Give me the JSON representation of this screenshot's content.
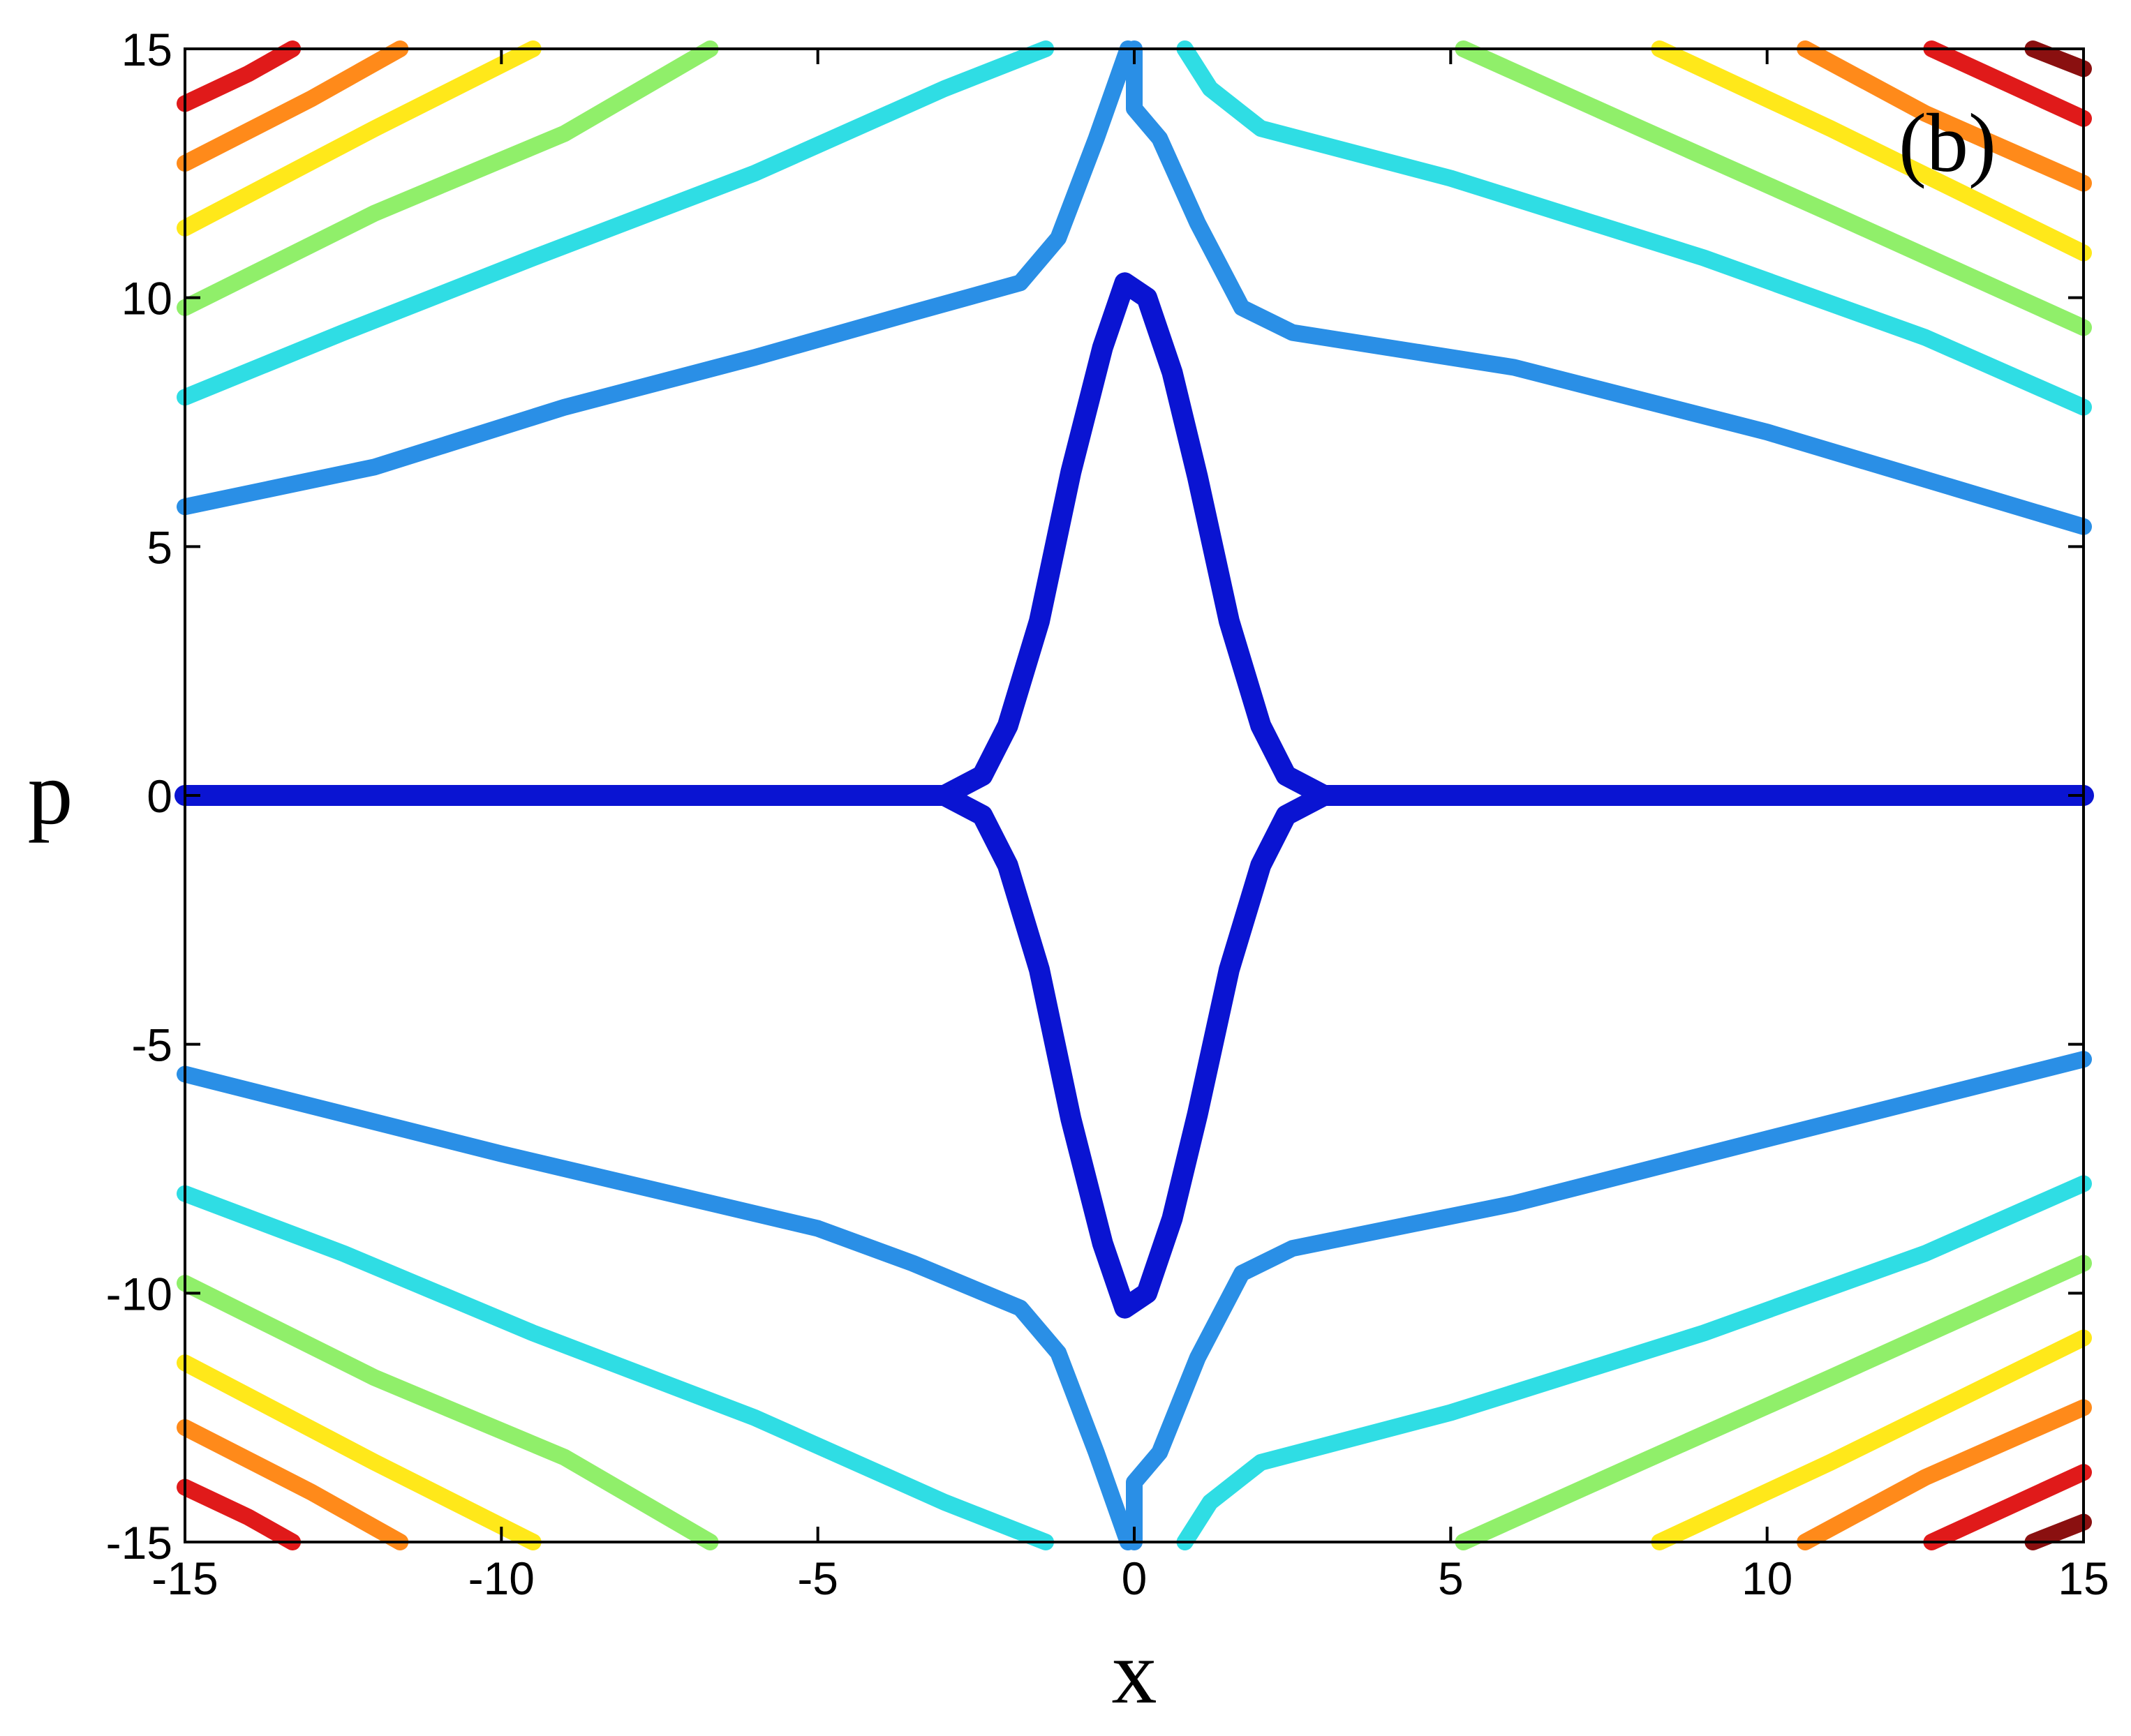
{
  "chart_data": {
    "type": "line",
    "title": "",
    "annotation": "(b)",
    "xlabel": "x",
    "ylabel": "p",
    "xlim": [
      -15,
      15
    ],
    "ylim": [
      -15,
      15
    ],
    "xticks": [
      "-15",
      "-10",
      "-5",
      "0",
      "5",
      "10",
      "15"
    ],
    "yticks": [
      "15",
      "10",
      "5",
      "0",
      "-5",
      "-10",
      "-15"
    ],
    "grid": false,
    "legend": "none",
    "series": [
      {
        "color": "#0a14d2",
        "segments": [
          [
            [
              -15,
              0
            ],
            [
              -3,
              0
            ],
            [
              -2.4,
              0.4
            ],
            [
              -2,
              1.4
            ],
            [
              -1.5,
              3.5
            ],
            [
              -1,
              6.5
            ],
            [
              -0.5,
              9
            ],
            [
              -0.15,
              10.3
            ],
            [
              0.2,
              10
            ],
            [
              0.6,
              8.5
            ],
            [
              1,
              6.4
            ],
            [
              1.5,
              3.5
            ],
            [
              2,
              1.4
            ],
            [
              2.4,
              0.4
            ],
            [
              3,
              0
            ],
            [
              15,
              0
            ]
          ],
          [
            [
              -3,
              0
            ],
            [
              -2.4,
              -0.4
            ],
            [
              -2,
              -1.4
            ],
            [
              -1.5,
              -3.5
            ],
            [
              -1,
              -6.5
            ],
            [
              -0.5,
              -9
            ],
            [
              -0.15,
              -10.3
            ],
            [
              0.2,
              -10
            ],
            [
              0.6,
              -8.5
            ],
            [
              1,
              -6.4
            ],
            [
              1.5,
              -3.5
            ],
            [
              2,
              -1.4
            ],
            [
              2.4,
              -0.4
            ],
            [
              3,
              0
            ]
          ]
        ]
      },
      {
        "color": "#2a8fe6",
        "segments": [
          [
            [
              -15,
              5.8
            ],
            [
              -12,
              6.6
            ],
            [
              -9,
              7.8
            ],
            [
              -6,
              8.8
            ],
            [
              -3.5,
              9.7
            ],
            [
              -1.8,
              10.3
            ],
            [
              -1.2,
              11.2
            ],
            [
              -0.6,
              13.2
            ],
            [
              -0.1,
              15
            ]
          ],
          [
            [
              0,
              15
            ],
            [
              0,
              13.8
            ],
            [
              0.4,
              13.2
            ],
            [
              1,
              11.5
            ],
            [
              1.7,
              9.8
            ],
            [
              2.5,
              9.3
            ],
            [
              6,
              8.6
            ],
            [
              10,
              7.3
            ],
            [
              15,
              5.4
            ]
          ],
          [
            [
              -15,
              -5.6
            ],
            [
              -10,
              -7.2
            ],
            [
              -5,
              -8.7
            ],
            [
              -3.5,
              -9.4
            ],
            [
              -1.8,
              -10.3
            ],
            [
              -1.2,
              -11.2
            ],
            [
              -0.6,
              -13.2
            ],
            [
              -0.1,
              -15
            ]
          ],
          [
            [
              0,
              -15
            ],
            [
              0,
              -13.8
            ],
            [
              0.4,
              -13.2
            ],
            [
              1,
              -11.3
            ],
            [
              1.7,
              -9.6
            ],
            [
              2.5,
              -9.1
            ],
            [
              6,
              -8.2
            ],
            [
              10,
              -6.9
            ],
            [
              15,
              -5.3
            ]
          ]
        ]
      },
      {
        "color": "#2fdde4",
        "segments": [
          [
            [
              -15,
              8
            ],
            [
              -12.5,
              9.3
            ],
            [
              -9.5,
              10.8
            ],
            [
              -6,
              12.5
            ],
            [
              -3,
              14.2
            ],
            [
              -1.4,
              15
            ]
          ],
          [
            [
              0.8,
              15
            ],
            [
              1.2,
              14.2
            ],
            [
              2,
              13.4
            ],
            [
              5,
              12.4
            ],
            [
              9,
              10.8
            ],
            [
              12.5,
              9.2
            ],
            [
              15,
              7.8
            ]
          ],
          [
            [
              -15,
              -8
            ],
            [
              -12.5,
              -9.2
            ],
            [
              -9.5,
              -10.8
            ],
            [
              -6,
              -12.5
            ],
            [
              -3,
              -14.2
            ],
            [
              -1.4,
              -15
            ]
          ],
          [
            [
              0.8,
              -15
            ],
            [
              1.2,
              -14.2
            ],
            [
              2,
              -13.4
            ],
            [
              5,
              -12.4
            ],
            [
              9,
              -10.8
            ],
            [
              12.5,
              -9.2
            ],
            [
              15,
              -7.8
            ]
          ]
        ]
      },
      {
        "color": "#90ef6a",
        "segments": [
          [
            [
              -15,
              9.8
            ],
            [
              -12,
              11.7
            ],
            [
              -9,
              13.3
            ],
            [
              -6.7,
              15
            ]
          ],
          [
            [
              5.2,
              15
            ],
            [
              8,
              13.4
            ],
            [
              11,
              11.7
            ],
            [
              15,
              9.4
            ]
          ],
          [
            [
              -15,
              -9.8
            ],
            [
              -12,
              -11.7
            ],
            [
              -9,
              -13.3
            ],
            [
              -6.7,
              -15
            ]
          ],
          [
            [
              5.2,
              -15
            ],
            [
              8,
              -13.4
            ],
            [
              11,
              -11.7
            ],
            [
              15,
              -9.4
            ]
          ]
        ]
      },
      {
        "color": "#ffe81a",
        "segments": [
          [
            [
              -15,
              11.4
            ],
            [
              -12,
              13.4
            ],
            [
              -9.5,
              15
            ]
          ],
          [
            [
              8.3,
              15
            ],
            [
              11,
              13.4
            ],
            [
              15,
              10.9
            ]
          ],
          [
            [
              -15,
              -11.4
            ],
            [
              -12,
              -13.4
            ],
            [
              -9.5,
              -15
            ]
          ],
          [
            [
              8.3,
              -15
            ],
            [
              11,
              -13.4
            ],
            [
              15,
              -10.9
            ]
          ]
        ]
      },
      {
        "color": "#ff8a1a",
        "segments": [
          [
            [
              -15,
              12.7
            ],
            [
              -13,
              14
            ],
            [
              -11.6,
              15
            ]
          ],
          [
            [
              10.6,
              15
            ],
            [
              12.5,
              13.7
            ],
            [
              15,
              12.3
            ]
          ],
          [
            [
              -15,
              -12.7
            ],
            [
              -13,
              -14
            ],
            [
              -11.6,
              -15
            ]
          ],
          [
            [
              10.6,
              -15
            ],
            [
              12.5,
              -13.7
            ],
            [
              15,
              -12.3
            ]
          ]
        ]
      },
      {
        "color": "#e01a1a",
        "segments": [
          [
            [
              -15,
              13.9
            ],
            [
              -14,
              14.5
            ],
            [
              -13.3,
              15
            ]
          ],
          [
            [
              12.6,
              15
            ],
            [
              13.8,
              14.3
            ],
            [
              15,
              13.6
            ]
          ],
          [
            [
              -15,
              -13.9
            ],
            [
              -14,
              -14.5
            ],
            [
              -13.3,
              -15
            ]
          ],
          [
            [
              12.6,
              -15
            ],
            [
              13.8,
              -14.3
            ],
            [
              15,
              -13.6
            ]
          ]
        ]
      },
      {
        "color": "#8a1010",
        "segments": [
          [
            [
              14.2,
              15
            ],
            [
              15,
              14.6
            ]
          ],
          [
            [
              14.2,
              -15
            ],
            [
              15,
              -14.6
            ]
          ]
        ]
      }
    ]
  }
}
